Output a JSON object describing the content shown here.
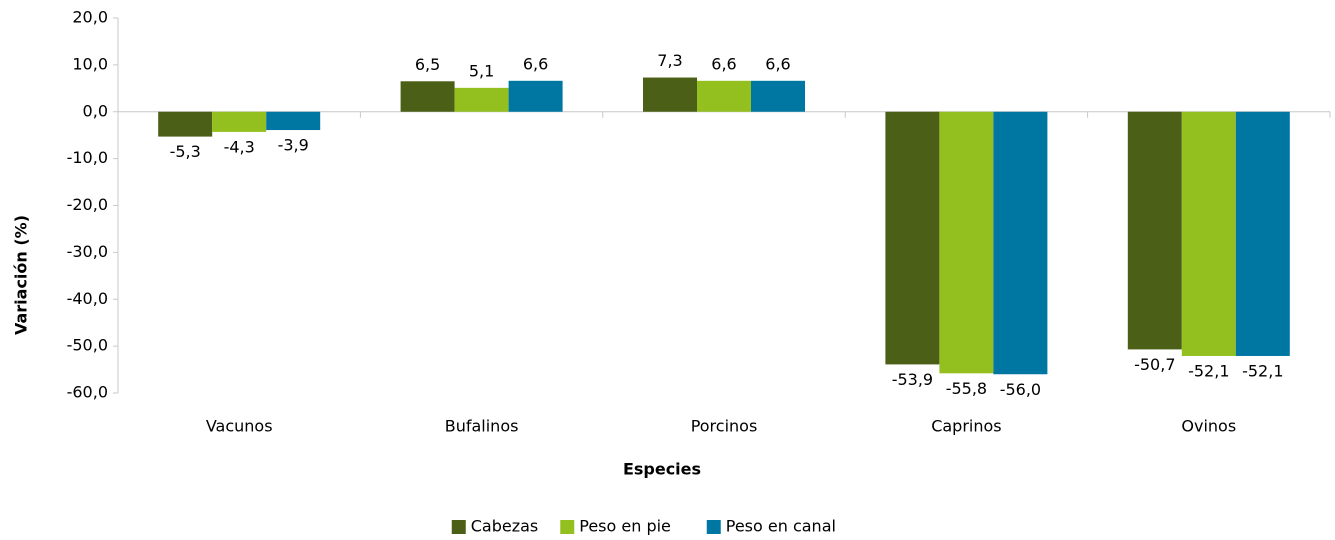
{
  "chart_data": {
    "type": "bar",
    "y_label": "Variación (%)",
    "x_label": "Especies",
    "categories": [
      "Vacunos",
      "Bufalinos",
      "Porcinos",
      "Caprinos",
      "Ovinos"
    ],
    "series": [
      {
        "name": "Cabezas",
        "color": "#4b5f17",
        "values": [
          -5.3,
          6.5,
          7.3,
          -53.9,
          -50.7
        ],
        "value_labels": [
          "-5,3",
          "6,5",
          "7,3",
          "-53,9",
          "-50,7"
        ]
      },
      {
        "name": "Peso en pie",
        "color": "#93c01f",
        "values": [
          -4.3,
          5.1,
          6.6,
          -55.8,
          -52.1
        ],
        "value_labels": [
          "-4,3",
          "5,1",
          "6,6",
          "-55,8",
          "-52,1"
        ]
      },
      {
        "name": "Peso en canal",
        "color": "#0076a3",
        "values": [
          -3.9,
          6.6,
          6.6,
          -56.0,
          -52.1
        ],
        "value_labels": [
          "-3,9",
          "6,6",
          "6,6",
          "-56,0",
          "-52,1"
        ]
      }
    ],
    "ylim": [
      -60,
      20
    ],
    "yticks": [
      {
        "value": 20,
        "label": "20,0"
      },
      {
        "value": 10,
        "label": "10,0"
      },
      {
        "value": 0,
        "label": "0,0"
      },
      {
        "value": -10,
        "label": "-10,0"
      },
      {
        "value": -20,
        "label": "-20,0"
      },
      {
        "value": -30,
        "label": "-30,0"
      },
      {
        "value": -40,
        "label": "-40,0"
      },
      {
        "value": -50,
        "label": "-50,0"
      },
      {
        "value": -60,
        "label": "-60,0"
      }
    ],
    "grid": false,
    "legend": "bottom"
  }
}
